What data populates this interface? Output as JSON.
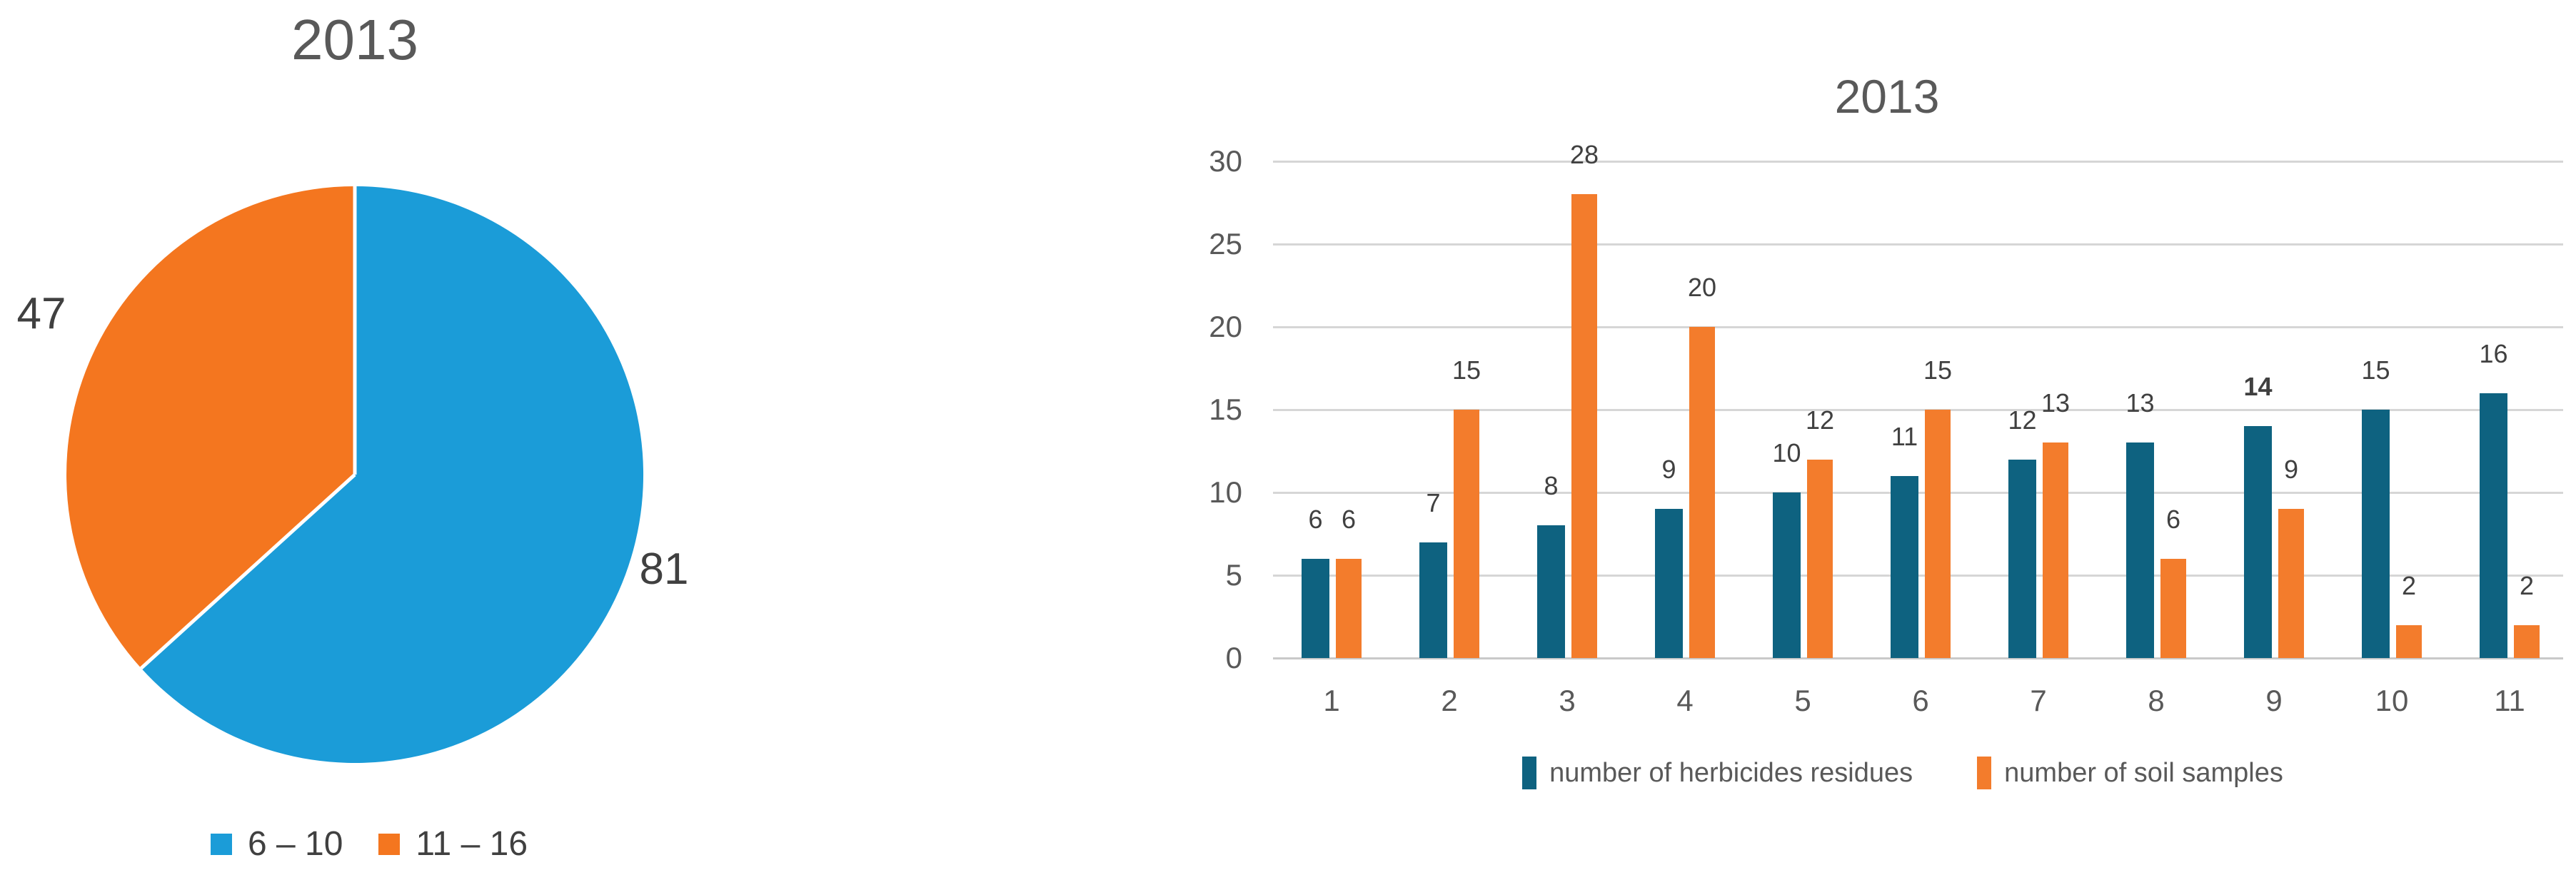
{
  "palette": {
    "pie_blue": "#1B9CD8",
    "pie_orange": "#F4761F",
    "bar_teal": "#0E6280",
    "bar_orange": "#F37C2C",
    "gridline": "#D6D6D6",
    "axis_line": "#C9C9C9",
    "title_text": "#595959",
    "axis_text": "#595959",
    "data_label_text": "#404040"
  },
  "chart_data": [
    {
      "type": "pie",
      "title": "2013",
      "slices": [
        {
          "label": "6 – 10",
          "value": 81,
          "color": "#1B9CD8"
        },
        {
          "label": "11 – 16",
          "value": 47,
          "color": "#F4761F"
        }
      ],
      "start_angle_deg": 0,
      "direction": "clockwise",
      "data_labels": "outside-values",
      "legend_position": "bottom"
    },
    {
      "type": "bar",
      "title": "2013",
      "categories": [
        "1",
        "2",
        "3",
        "4",
        "5",
        "6",
        "7",
        "8",
        "9",
        "10",
        "11"
      ],
      "series": [
        {
          "name": "number of herbicides residues",
          "color": "#0E6280",
          "values": [
            6,
            7,
            8,
            9,
            10,
            11,
            12,
            13,
            14,
            15,
            16
          ]
        },
        {
          "name": "number of soil samples",
          "color": "#F37C2C",
          "values": [
            6,
            15,
            28,
            20,
            12,
            15,
            13,
            6,
            9,
            2,
            2
          ]
        }
      ],
      "ylim": [
        0,
        30
      ],
      "yticks": [
        0,
        5,
        10,
        15,
        20,
        25,
        30
      ],
      "grid": true,
      "legend_position": "bottom",
      "emphasized_label": {
        "series_index": 0,
        "category_index": 8
      }
    }
  ]
}
